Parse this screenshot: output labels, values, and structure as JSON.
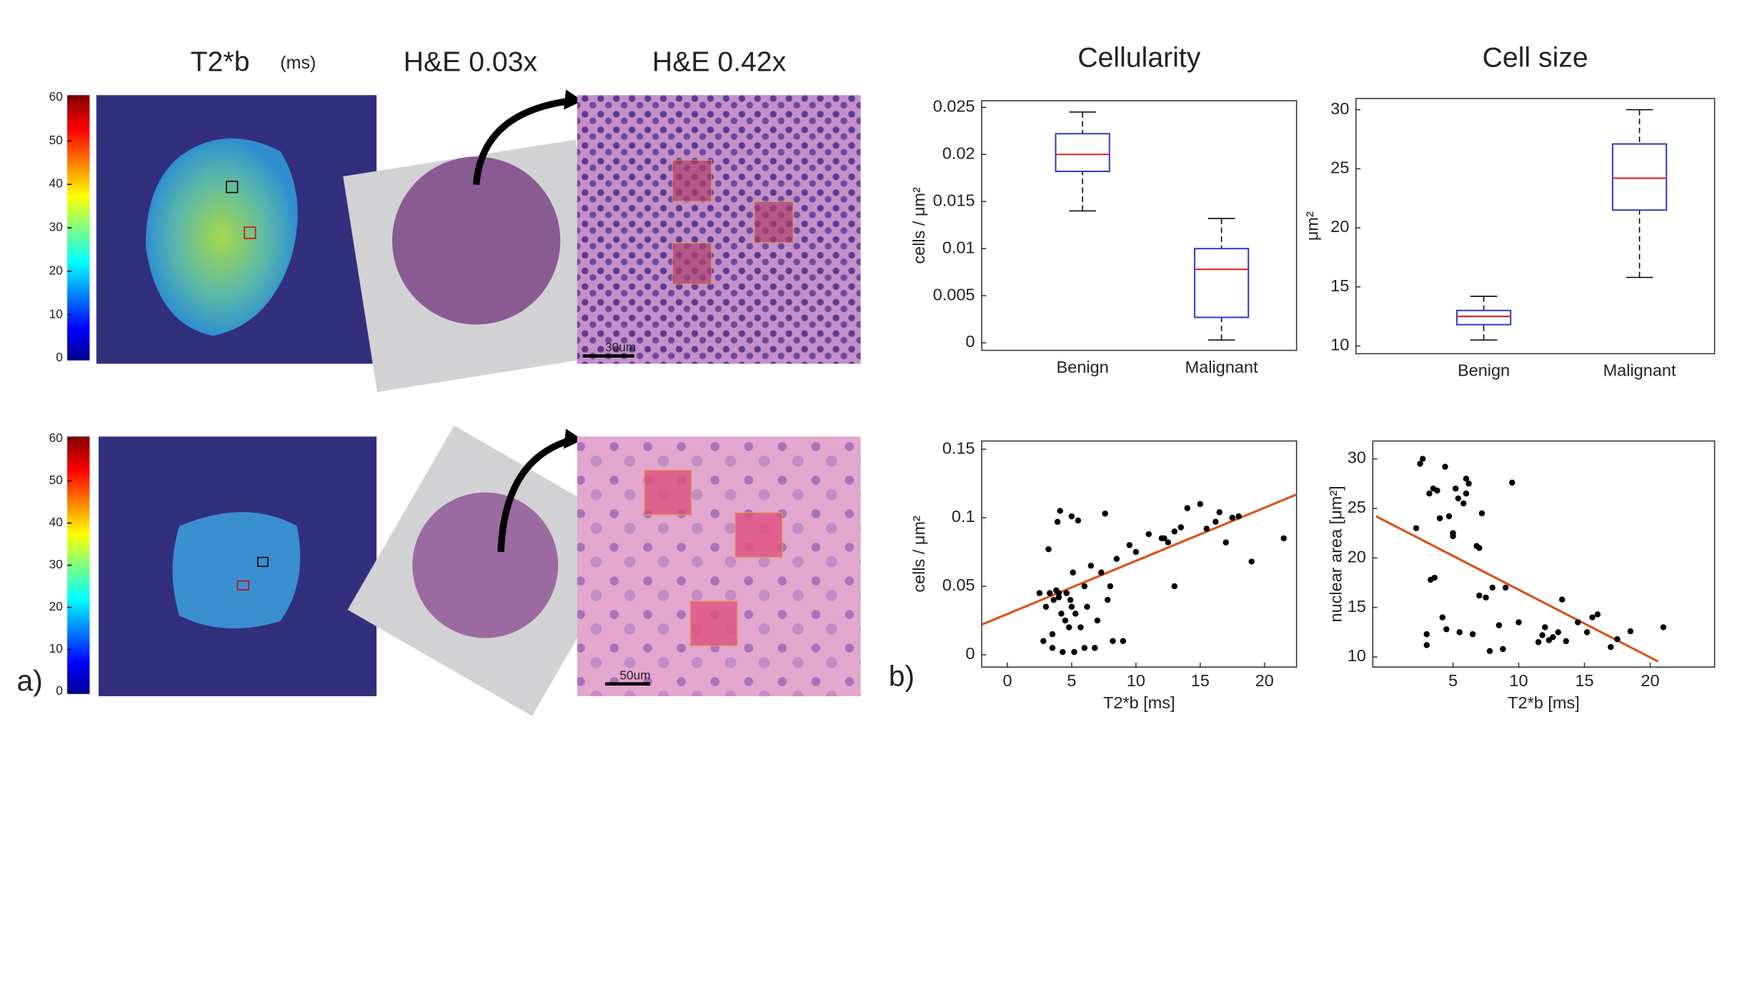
{
  "panel_a": {
    "header": {
      "t2b": "T2*b",
      "units": "(ms)",
      "he_low": "H&E 0.03x",
      "he_high": "H&E 0.42x"
    },
    "colorbar": {
      "lim": [
        0,
        60
      ],
      "ticks": [
        0,
        10,
        20,
        30,
        40,
        50,
        60
      ]
    },
    "scale_bars": [
      "30um",
      "50um"
    ]
  },
  "panel_labels": [
    "a)",
    "b)"
  ],
  "chart_data": [
    {
      "type": "box",
      "title": "Cellularity",
      "ylabel": "cells / μm²",
      "categories": [
        "Benign",
        "Malignant"
      ],
      "boxes": [
        {
          "min": 0.014,
          "q1": 0.0182,
          "median": 0.02,
          "q3": 0.0222,
          "max": 0.0245
        },
        {
          "min": 0.0003,
          "q1": 0.0027,
          "median": 0.0078,
          "q3": 0.01,
          "max": 0.0132
        }
      ],
      "color": "#2f3fc0",
      "median_color": "#e02020",
      "ylim": [
        -0.0008,
        0.0257
      ],
      "yticks": [
        0,
        0.005,
        0.01,
        0.015,
        0.02,
        0.025
      ]
    },
    {
      "type": "box",
      "title": "Cell size",
      "ylabel": "μm²",
      "categories": [
        "Benign",
        "Malignant"
      ],
      "boxes": [
        {
          "min": 10.5,
          "q1": 11.8,
          "median": 12.5,
          "q3": 13.0,
          "max": 14.2
        },
        {
          "min": 15.8,
          "q1": 21.5,
          "median": 24.2,
          "q3": 27.1,
          "max": 30.0
        }
      ],
      "color": "#2f3fc0",
      "median_color": "#e02020",
      "ylim": [
        9.34,
        30.95
      ],
      "yticks": [
        10,
        15,
        20,
        25,
        30
      ]
    },
    {
      "type": "scatter",
      "xlabel": "T2*b [ms]",
      "ylabel": "cells / μm²",
      "color": "#000000",
      "x": [
        2.5,
        2.8,
        3.0,
        3.2,
        3.3,
        3.5,
        3.6,
        3.8,
        3.9,
        4.0,
        4.1,
        4.2,
        4.3,
        4.5,
        4.6,
        4.8,
        4.9,
        5.0,
        5.1,
        5.2,
        5.3,
        5.5,
        5.7,
        6.0,
        6.2,
        6.5,
        6.8,
        7.0,
        7.3,
        7.6,
        7.8,
        8.2,
        8.5,
        9.0,
        9.5,
        10.0,
        11.0,
        12.0,
        12.5,
        13.0,
        13.5,
        14.0,
        15.0,
        15.5,
        16.2,
        16.5,
        17.0,
        17.5,
        18.0,
        19.0,
        21.5,
        3.5,
        4.0,
        5.0,
        6.0,
        8.0,
        13.0,
        12.2
      ],
      "values": [
        0.045,
        0.01,
        0.035,
        0.077,
        0.045,
        0.015,
        0.04,
        0.047,
        0.097,
        0.042,
        0.105,
        0.03,
        0.002,
        0.025,
        0.045,
        0.02,
        0.04,
        0.101,
        0.06,
        0.002,
        0.03,
        0.098,
        0.02,
        0.05,
        0.035,
        0.065,
        0.005,
        0.025,
        0.06,
        0.103,
        0.04,
        0.01,
        0.07,
        0.01,
        0.08,
        0.075,
        0.088,
        0.085,
        0.082,
        0.05,
        0.093,
        0.107,
        0.11,
        0.092,
        0.097,
        0.104,
        0.082,
        0.1,
        0.101,
        0.068,
        0.085,
        0.005,
        0.045,
        0.035,
        0.005,
        0.05,
        0.09,
        0.085
      ],
      "fit": {
        "x": [
          -2.0,
          22.5
        ],
        "values": [
          0.022,
          0.117
        ],
        "color": "#d95319"
      },
      "xlim": [
        -2.0,
        22.5
      ],
      "xticks": [
        0,
        5,
        10,
        15,
        20
      ],
      "ylim": [
        -0.009,
        0.156
      ],
      "yticks": [
        0,
        0.05,
        0.1,
        0.15
      ]
    },
    {
      "type": "scatter",
      "xlabel": "T2*b [ms]",
      "ylabel": "nuclear area [μm²]",
      "color": "#000000",
      "x": [
        2.2,
        2.5,
        2.7,
        3.0,
        3.2,
        3.3,
        3.5,
        3.6,
        3.8,
        4.0,
        4.2,
        4.4,
        4.5,
        4.7,
        5.0,
        5.2,
        5.4,
        5.5,
        5.8,
        6.0,
        6.2,
        6.5,
        6.8,
        7.0,
        7.2,
        7.5,
        7.8,
        8.0,
        8.5,
        9.0,
        9.5,
        10.0,
        11.5,
        11.8,
        12.0,
        12.3,
        12.6,
        13.0,
        13.3,
        13.6,
        14.5,
        15.2,
        15.6,
        16.0,
        17.0,
        17.5,
        18.5,
        21.0,
        3.0,
        4.0,
        5.0,
        6.0,
        7.0,
        8.8
      ],
      "values": [
        23.0,
        29.5,
        30.0,
        11.2,
        26.5,
        17.8,
        27.0,
        18.0,
        26.8,
        24.0,
        14.0,
        29.2,
        12.8,
        24.2,
        22.2,
        27.0,
        26.0,
        12.5,
        25.5,
        28.0,
        27.5,
        12.3,
        21.2,
        16.2,
        24.5,
        16.0,
        10.6,
        17.0,
        13.2,
        17.0,
        27.6,
        13.5,
        11.5,
        12.2,
        13.0,
        11.7,
        12.0,
        12.5,
        15.8,
        11.6,
        13.5,
        12.5,
        14.0,
        14.3,
        11.0,
        11.8,
        12.6,
        13.0,
        12.3,
        24.0,
        22.5,
        26.5,
        21.0,
        10.8
      ],
      "fit": {
        "x": [
          -0.85,
          20.6
        ],
        "values": [
          24.2,
          9.55
        ],
        "color": "#d95319"
      },
      "xlim": [
        -1.1,
        24.9
      ],
      "xticks": [
        5,
        10,
        15,
        20
      ],
      "ylim": [
        8.98,
        31.8
      ],
      "yticks": [
        10,
        15,
        20,
        25,
        30
      ]
    }
  ]
}
